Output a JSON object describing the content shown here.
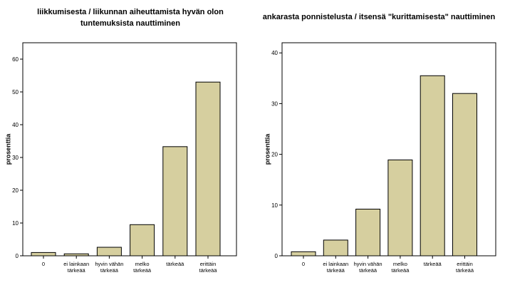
{
  "chart_data": [
    {
      "type": "bar",
      "title_lines": [
        "liikkumisesta / liikunnan aiheuttamista hyvän olon",
        "tuntemuksista nauttiminen"
      ],
      "ylabel": "prosenttia",
      "xlabel": "",
      "ylim": [
        0,
        65
      ],
      "yticks": [
        0,
        10,
        20,
        30,
        40,
        50,
        60
      ],
      "categories": [
        [
          "0"
        ],
        [
          "ei lainkaan",
          "tärkeää"
        ],
        [
          "hyvin vähän",
          "tärkeää"
        ],
        [
          "melko",
          "tärkeää"
        ],
        [
          "tärkeää"
        ],
        [
          "erittäin",
          "tärkeää"
        ]
      ],
      "values": [
        1.0,
        0.6,
        2.6,
        9.5,
        33.3,
        53.0
      ]
    },
    {
      "type": "bar",
      "title_lines": [
        "ankarasta ponnistelusta / itsensä \"kurittamisesta\" nauttiminen"
      ],
      "ylabel": "prosenttia",
      "xlabel": "",
      "ylim": [
        0,
        42
      ],
      "yticks": [
        0,
        10,
        20,
        30,
        40
      ],
      "categories": [
        [
          "0"
        ],
        [
          "ei lainkaan",
          "tärkeää"
        ],
        [
          "hyvin vähän",
          "tärkeää"
        ],
        [
          "melko",
          "tärkeää"
        ],
        [
          "tärkeää"
        ],
        [
          "erittäin",
          "tärkeää"
        ]
      ],
      "values": [
        0.8,
        3.1,
        9.2,
        18.9,
        35.5,
        32.0
      ]
    }
  ],
  "colors": {
    "bar_fill": "#d6cf9f",
    "bar_stroke": "#000000",
    "frame": "#000000"
  }
}
